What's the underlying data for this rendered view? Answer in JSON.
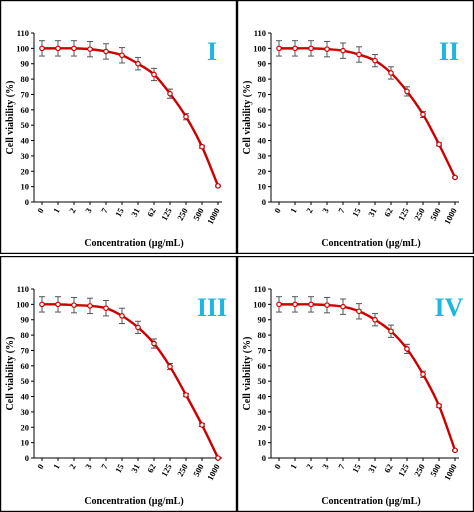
{
  "colors": {
    "line": "#cc0000",
    "error_bar": "#555555",
    "panel_label": "#1fb6e0",
    "axis": "#000000"
  },
  "chart_data": [
    {
      "type": "line",
      "panel_label": "I",
      "xlabel": "Concentration (µg/mL)",
      "ylabel": "Cell viability (%)",
      "categories": [
        "0",
        "1",
        "2",
        "3",
        "7",
        "15",
        "31",
        "62",
        "125",
        "250",
        "500",
        "1000"
      ],
      "series": [
        {
          "values": [
            100,
            100,
            100,
            99.5,
            98,
            95.5,
            90,
            83,
            70.5,
            55.5,
            36,
            10.5
          ],
          "error": [
            5,
            5,
            5,
            5,
            5,
            5,
            4,
            4,
            3,
            2,
            1,
            0.5
          ]
        }
      ],
      "ylim": [
        0,
        110
      ],
      "yticks": [
        0,
        10,
        20,
        30,
        40,
        50,
        60,
        70,
        80,
        90,
        100,
        110
      ],
      "grid": false,
      "legend": "none"
    },
    {
      "type": "line",
      "panel_label": "II",
      "xlabel": "Concentration (µg/mL)",
      "ylabel": "Cell viability (%)",
      "categories": [
        "0",
        "1",
        "2",
        "3",
        "7",
        "15",
        "31",
        "62",
        "125",
        "250",
        "500",
        "1000"
      ],
      "series": [
        {
          "values": [
            100,
            100,
            100,
            99.5,
            98.5,
            96,
            92,
            84,
            72,
            57,
            37.5,
            16
          ],
          "error": [
            5,
            5,
            5,
            5,
            5,
            5,
            4,
            4,
            3,
            2,
            1,
            0.5
          ]
        }
      ],
      "ylim": [
        0,
        110
      ],
      "yticks": [
        0,
        10,
        20,
        30,
        40,
        50,
        60,
        70,
        80,
        90,
        100,
        110
      ],
      "grid": false,
      "legend": "none"
    },
    {
      "type": "line",
      "panel_label": "III",
      "xlabel": "Concentration (µg/mL)",
      "ylabel": "Cell viability (%)",
      "categories": [
        "0",
        "1",
        "2",
        "3",
        "7",
        "15",
        "31",
        "62",
        "125",
        "250",
        "500",
        "1000"
      ],
      "series": [
        {
          "values": [
            100,
            100,
            99.5,
            99,
            97.5,
            92.5,
            85,
            74.5,
            59.5,
            41,
            21.5,
            0
          ],
          "error": [
            5,
            5,
            5,
            5,
            5,
            5,
            4,
            3,
            2,
            1,
            1,
            0.5
          ]
        }
      ],
      "ylim": [
        0,
        110
      ],
      "yticks": [
        0,
        10,
        20,
        30,
        40,
        50,
        60,
        70,
        80,
        90,
        100,
        110
      ],
      "grid": false,
      "legend": "none"
    },
    {
      "type": "line",
      "panel_label": "IV",
      "xlabel": "Concentration (µg/mL)",
      "ylabel": "Cell viability (%)",
      "categories": [
        "0",
        "1",
        "2",
        "3",
        "7",
        "15",
        "31",
        "62",
        "125",
        "250",
        "500",
        "1000"
      ],
      "series": [
        {
          "values": [
            100,
            100,
            100,
            99.5,
            98.5,
            95.5,
            90,
            82.5,
            71,
            54.5,
            34,
            5
          ],
          "error": [
            5,
            5,
            5,
            5,
            5,
            5,
            4,
            4,
            3,
            2,
            1,
            0.5
          ]
        }
      ],
      "ylim": [
        0,
        110
      ],
      "yticks": [
        0,
        10,
        20,
        30,
        40,
        50,
        60,
        70,
        80,
        90,
        100,
        110
      ],
      "grid": false,
      "legend": "none"
    }
  ]
}
